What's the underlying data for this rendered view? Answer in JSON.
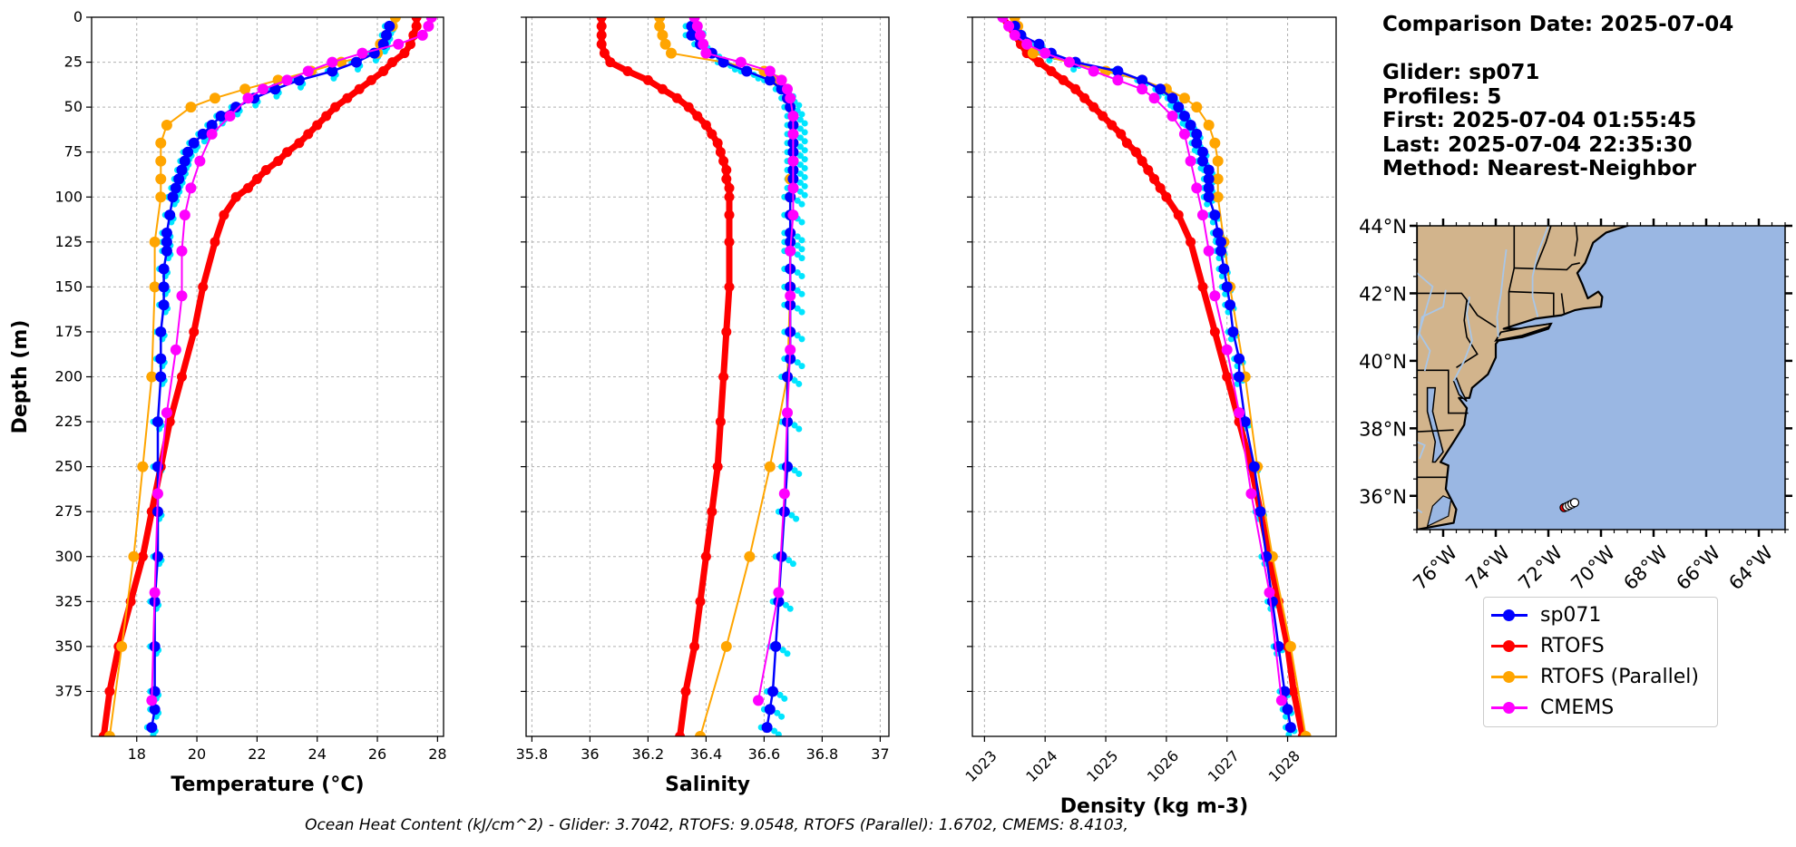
{
  "info": {
    "comparison": "Comparison Date: 2025-07-04",
    "glider": "Glider: sp071",
    "profiles": "Profiles: 5",
    "first": "First: 2025-07-04 01:55:45",
    "last": "Last: 2025-07-04 22:35:30",
    "method": "Method: Nearest-Neighbor"
  },
  "footer": "Ocean Heat Content (kJ/cm^2) - Glider: 3.7042,  RTOFS: 9.0548,  RTOFS (Parallel): 1.6702,  CMEMS: 8.4103,",
  "colors": {
    "glider": "#0000ff",
    "glider_profiles": "#00e5ff",
    "rtofs": "#ff0000",
    "rtofs_parallel": "#ffa500",
    "cmems": "#ff00ff",
    "land": "#d2b48c",
    "ocean": "#9ab7e3",
    "rivers": "#a8c6e8"
  },
  "chart_data": [
    {
      "type": "line",
      "xlabel": "Temperature (°C)",
      "ylabel": "Depth (m)",
      "xlim": [
        16.5,
        28.2
      ],
      "ylim": [
        400,
        0
      ],
      "xticks": [
        18,
        20,
        22,
        24,
        26,
        28
      ],
      "yticks": [
        0,
        25,
        50,
        75,
        100,
        125,
        150,
        175,
        200,
        225,
        250,
        275,
        300,
        325,
        350,
        375
      ],
      "grid": true,
      "series": [
        {
          "name": "sp071",
          "depth": [
            5,
            10,
            15,
            20,
            25,
            30,
            35,
            40,
            45,
            50,
            55,
            60,
            65,
            70,
            75,
            80,
            85,
            90,
            95,
            100,
            110,
            120,
            125,
            130,
            140,
            150,
            160,
            175,
            190,
            200,
            225,
            250,
            275,
            300,
            325,
            350,
            375,
            385,
            395
          ],
          "values": [
            26.4,
            26.3,
            26.2,
            25.9,
            25.3,
            24.5,
            23.4,
            22.6,
            21.9,
            21.3,
            20.8,
            20.5,
            20.2,
            19.9,
            19.7,
            19.6,
            19.5,
            19.4,
            19.3,
            19.2,
            19.1,
            19.0,
            19.0,
            19.0,
            18.9,
            18.9,
            18.9,
            18.8,
            18.8,
            18.8,
            18.7,
            18.7,
            18.7,
            18.7,
            18.6,
            18.6,
            18.6,
            18.6,
            18.5
          ]
        },
        {
          "name": "RTOFS",
          "depth": [
            0,
            5,
            10,
            15,
            20,
            25,
            30,
            35,
            40,
            45,
            50,
            55,
            60,
            65,
            70,
            75,
            80,
            85,
            90,
            95,
            100,
            110,
            125,
            150,
            175,
            200,
            225,
            250,
            275,
            300,
            325,
            350,
            375,
            400
          ],
          "values": [
            27.3,
            27.3,
            27.2,
            27.1,
            26.9,
            26.5,
            26.2,
            25.8,
            25.4,
            25.0,
            24.6,
            24.3,
            24.0,
            23.7,
            23.4,
            23.0,
            22.7,
            22.3,
            22.0,
            21.7,
            21.3,
            20.9,
            20.6,
            20.2,
            19.9,
            19.5,
            19.1,
            18.8,
            18.5,
            18.2,
            17.8,
            17.4,
            17.1,
            16.9
          ]
        },
        {
          "name": "RTOFS (Parallel)",
          "depth": [
            0,
            5,
            10,
            15,
            20,
            25,
            30,
            35,
            40,
            45,
            50,
            60,
            70,
            80,
            90,
            100,
            125,
            150,
            200,
            250,
            300,
            350,
            400
          ],
          "values": [
            26.6,
            26.5,
            26.3,
            26.1,
            26.0,
            24.8,
            23.8,
            22.7,
            21.6,
            20.6,
            19.8,
            19.0,
            18.8,
            18.8,
            18.8,
            18.8,
            18.6,
            18.6,
            18.5,
            18.2,
            17.9,
            17.5,
            17.1
          ]
        },
        {
          "name": "CMEMS",
          "depth": [
            0,
            5,
            10,
            15,
            20,
            25,
            30,
            35,
            40,
            45,
            55,
            65,
            80,
            95,
            110,
            130,
            155,
            185,
            220,
            265,
            320,
            380
          ],
          "values": [
            27.8,
            27.7,
            27.5,
            26.7,
            25.5,
            24.5,
            23.7,
            23.0,
            22.2,
            21.7,
            21.1,
            20.5,
            20.1,
            19.8,
            19.6,
            19.5,
            19.5,
            19.3,
            19.0,
            18.7,
            18.6,
            18.5
          ]
        }
      ]
    },
    {
      "type": "line",
      "xlabel": "Salinity",
      "ylim": [
        400,
        0
      ],
      "xlim": [
        35.78,
        37.03
      ],
      "xticks": [
        35.8,
        36.0,
        36.2,
        36.4,
        36.6,
        36.8,
        37.0
      ],
      "grid": true,
      "series": [
        {
          "name": "sp071",
          "depth": [
            5,
            10,
            15,
            20,
            25,
            30,
            35,
            40,
            45,
            50,
            55,
            60,
            65,
            70,
            75,
            80,
            85,
            90,
            95,
            100,
            110,
            120,
            125,
            130,
            140,
            150,
            160,
            175,
            190,
            200,
            225,
            250,
            275,
            300,
            325,
            350,
            375,
            385,
            395
          ],
          "values": [
            36.35,
            36.35,
            36.38,
            36.42,
            36.46,
            36.54,
            36.62,
            36.66,
            36.68,
            36.69,
            36.7,
            36.7,
            36.7,
            36.7,
            36.7,
            36.7,
            36.7,
            36.7,
            36.7,
            36.69,
            36.69,
            36.69,
            36.69,
            36.69,
            36.69,
            36.69,
            36.69,
            36.69,
            36.69,
            36.68,
            36.68,
            36.68,
            36.67,
            36.66,
            36.65,
            36.64,
            36.63,
            36.62,
            36.61
          ]
        },
        {
          "name": "RTOFS",
          "depth": [
            0,
            5,
            10,
            15,
            20,
            25,
            30,
            35,
            40,
            45,
            50,
            55,
            60,
            65,
            70,
            75,
            80,
            85,
            90,
            95,
            100,
            110,
            125,
            150,
            175,
            200,
            225,
            250,
            275,
            300,
            325,
            350,
            375,
            400
          ],
          "values": [
            36.04,
            36.04,
            36.04,
            36.04,
            36.05,
            36.07,
            36.13,
            36.2,
            36.25,
            36.3,
            36.34,
            36.37,
            36.4,
            36.42,
            36.44,
            36.45,
            36.46,
            36.47,
            36.47,
            36.48,
            36.48,
            36.48,
            36.48,
            36.48,
            36.47,
            36.46,
            36.45,
            36.44,
            36.42,
            36.4,
            36.38,
            36.36,
            36.33,
            36.31
          ]
        },
        {
          "name": "RTOFS (Parallel)",
          "depth": [
            0,
            5,
            10,
            15,
            20,
            25,
            30,
            35,
            40,
            45,
            50,
            60,
            70,
            80,
            90,
            100,
            125,
            150,
            200,
            250,
            300,
            350,
            400
          ],
          "values": [
            36.24,
            36.24,
            36.25,
            36.26,
            36.28,
            36.46,
            36.6,
            36.64,
            36.67,
            36.68,
            36.69,
            36.7,
            36.7,
            36.7,
            36.69,
            36.69,
            36.69,
            36.69,
            36.68,
            36.62,
            36.55,
            36.47,
            36.38
          ]
        },
        {
          "name": "CMEMS",
          "depth": [
            0,
            5,
            10,
            15,
            20,
            25,
            30,
            35,
            40,
            45,
            55,
            65,
            80,
            95,
            110,
            130,
            155,
            185,
            220,
            265,
            320,
            380
          ],
          "values": [
            36.36,
            36.37,
            36.38,
            36.39,
            36.4,
            36.52,
            36.62,
            36.66,
            36.68,
            36.69,
            36.7,
            36.7,
            36.7,
            36.7,
            36.7,
            36.69,
            36.69,
            36.69,
            36.68,
            36.67,
            36.65,
            36.58
          ]
        }
      ]
    },
    {
      "type": "line",
      "xlabel": "Density (kg m-3)",
      "ylim": [
        400,
        0
      ],
      "xlim": [
        1022.8,
        1028.8
      ],
      "xticks": [
        1023,
        1024,
        1025,
        1026,
        1027,
        1028
      ],
      "grid": true,
      "series": [
        {
          "name": "sp071",
          "depth": [
            5,
            10,
            15,
            20,
            25,
            30,
            35,
            40,
            45,
            50,
            55,
            60,
            65,
            70,
            75,
            80,
            85,
            90,
            95,
            100,
            110,
            120,
            125,
            130,
            140,
            150,
            160,
            175,
            190,
            200,
            225,
            250,
            275,
            300,
            325,
            350,
            375,
            385,
            395
          ],
          "values": [
            1023.5,
            1023.6,
            1023.9,
            1024.1,
            1024.5,
            1025.2,
            1025.6,
            1025.9,
            1026.1,
            1026.2,
            1026.3,
            1026.4,
            1026.5,
            1026.5,
            1026.6,
            1026.6,
            1026.7,
            1026.7,
            1026.7,
            1026.7,
            1026.8,
            1026.85,
            1026.9,
            1026.9,
            1026.95,
            1027.0,
            1027.05,
            1027.1,
            1027.2,
            1027.2,
            1027.3,
            1027.45,
            1027.55,
            1027.65,
            1027.75,
            1027.85,
            1027.95,
            1028.0,
            1028.05
          ]
        },
        {
          "name": "RTOFS",
          "depth": [
            0,
            5,
            10,
            15,
            20,
            25,
            30,
            35,
            40,
            45,
            50,
            55,
            60,
            65,
            70,
            75,
            80,
            85,
            90,
            95,
            100,
            110,
            125,
            150,
            175,
            200,
            225,
            250,
            275,
            300,
            325,
            350,
            375,
            400
          ],
          "values": [
            1023.3,
            1023.4,
            1023.5,
            1023.6,
            1023.7,
            1023.9,
            1024.1,
            1024.3,
            1024.5,
            1024.65,
            1024.8,
            1024.95,
            1025.1,
            1025.25,
            1025.35,
            1025.5,
            1025.6,
            1025.7,
            1025.8,
            1025.9,
            1026.0,
            1026.2,
            1026.4,
            1026.6,
            1026.8,
            1027.0,
            1027.2,
            1027.4,
            1027.55,
            1027.7,
            1027.85,
            1028.0,
            1028.1,
            1028.25
          ]
        },
        {
          "name": "RTOFS (Parallel)",
          "depth": [
            0,
            5,
            10,
            15,
            20,
            25,
            30,
            35,
            40,
            45,
            50,
            60,
            70,
            80,
            90,
            100,
            125,
            150,
            200,
            250,
            300,
            350,
            400
          ],
          "values": [
            1023.5,
            1023.55,
            1023.6,
            1023.7,
            1023.8,
            1024.4,
            1025.0,
            1025.6,
            1026.0,
            1026.3,
            1026.5,
            1026.7,
            1026.8,
            1026.85,
            1026.85,
            1026.85,
            1026.95,
            1027.05,
            1027.3,
            1027.5,
            1027.75,
            1028.05,
            1028.3
          ]
        },
        {
          "name": "CMEMS",
          "depth": [
            0,
            5,
            10,
            15,
            20,
            25,
            30,
            35,
            40,
            45,
            55,
            65,
            80,
            95,
            110,
            130,
            155,
            185,
            220,
            265,
            320,
            380
          ],
          "values": [
            1023.3,
            1023.4,
            1023.5,
            1023.7,
            1024.0,
            1024.4,
            1024.8,
            1025.2,
            1025.6,
            1025.8,
            1026.1,
            1026.3,
            1026.4,
            1026.5,
            1026.6,
            1026.7,
            1026.8,
            1027.0,
            1027.2,
            1027.4,
            1027.7,
            1027.9
          ]
        }
      ]
    }
  ],
  "map": {
    "lon_ticks": [
      "76°W",
      "74°W",
      "72°W",
      "70°W",
      "68°W",
      "66°W",
      "64°W"
    ],
    "lat_ticks": [
      "44°N",
      "42°N",
      "40°N",
      "38°N",
      "36°N"
    ],
    "lon_range": [
      -77,
      -63
    ],
    "lat_range": [
      35,
      44
    ],
    "track": {
      "lon": [
        -71.4,
        -71.3,
        -71.2,
        -71.1,
        -71.0
      ],
      "lat": [
        35.65,
        35.68,
        35.72,
        35.76,
        35.8
      ]
    }
  },
  "legend": [
    "sp071",
    "RTOFS",
    "RTOFS (Parallel)",
    "CMEMS"
  ]
}
